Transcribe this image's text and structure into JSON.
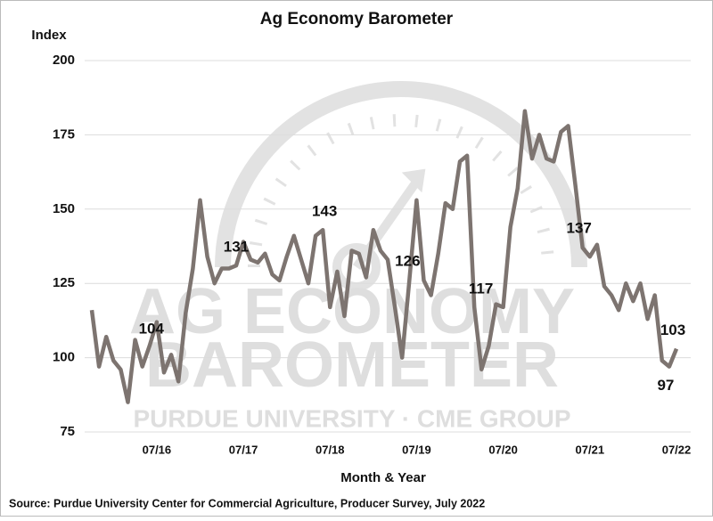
{
  "chart_data": {
    "type": "line",
    "title": "Ag Economy Barometer",
    "y_label": "Index",
    "x_label": "Month & Year",
    "source": "Source: Purdue University Center for Commercial Agriculture, Producer Survey, July 2022",
    "watermark": [
      "AG ECONOMY",
      "BAROMETER",
      "PURDUE UNIVERSITY · CME GROUP"
    ],
    "categories": [
      null,
      null,
      null,
      null,
      null,
      null,
      null,
      null,
      null,
      "07/16",
      null,
      null,
      null,
      null,
      null,
      null,
      null,
      null,
      null,
      null,
      null,
      "07/17",
      null,
      null,
      null,
      null,
      null,
      null,
      null,
      null,
      null,
      null,
      null,
      "07/18",
      null,
      null,
      null,
      null,
      null,
      null,
      null,
      null,
      null,
      null,
      null,
      "07/19",
      null,
      null,
      null,
      null,
      null,
      null,
      null,
      null,
      null,
      null,
      null,
      "07/20",
      null,
      null,
      null,
      null,
      null,
      null,
      null,
      null,
      null,
      null,
      null,
      "07/21",
      null,
      null,
      null,
      null,
      null,
      null,
      null,
      null,
      null,
      null,
      null,
      "07/22"
    ],
    "series": [
      {
        "name": "Ag Economy Barometer",
        "color": "#7d7470",
        "values": [
          116,
          97,
          107,
          99,
          96,
          85,
          106,
          97,
          104,
          112,
          95,
          101,
          92,
          115,
          130,
          153,
          134,
          125,
          130,
          130,
          131,
          139,
          133,
          132,
          135,
          128,
          126,
          134,
          141,
          133,
          125,
          141,
          143,
          117,
          129,
          114,
          136,
          135,
          127,
          143,
          136,
          133,
          117,
          100,
          126,
          153,
          126,
          121,
          135,
          152,
          150,
          166,
          168,
          117,
          96,
          104,
          118,
          117,
          144,
          157,
          183,
          167,
          175,
          167,
          166,
          176,
          178,
          158,
          137,
          134,
          138,
          124,
          121,
          116,
          125,
          119,
          125,
          113,
          121,
          99,
          97,
          103
        ]
      }
    ],
    "data_labels": [
      8,
      20,
      32,
      44,
      57,
      68,
      81,
      80
    ],
    "ylim": [
      75,
      200
    ],
    "yticks": [
      75,
      100,
      125,
      150,
      175,
      200
    ],
    "grid": true
  }
}
